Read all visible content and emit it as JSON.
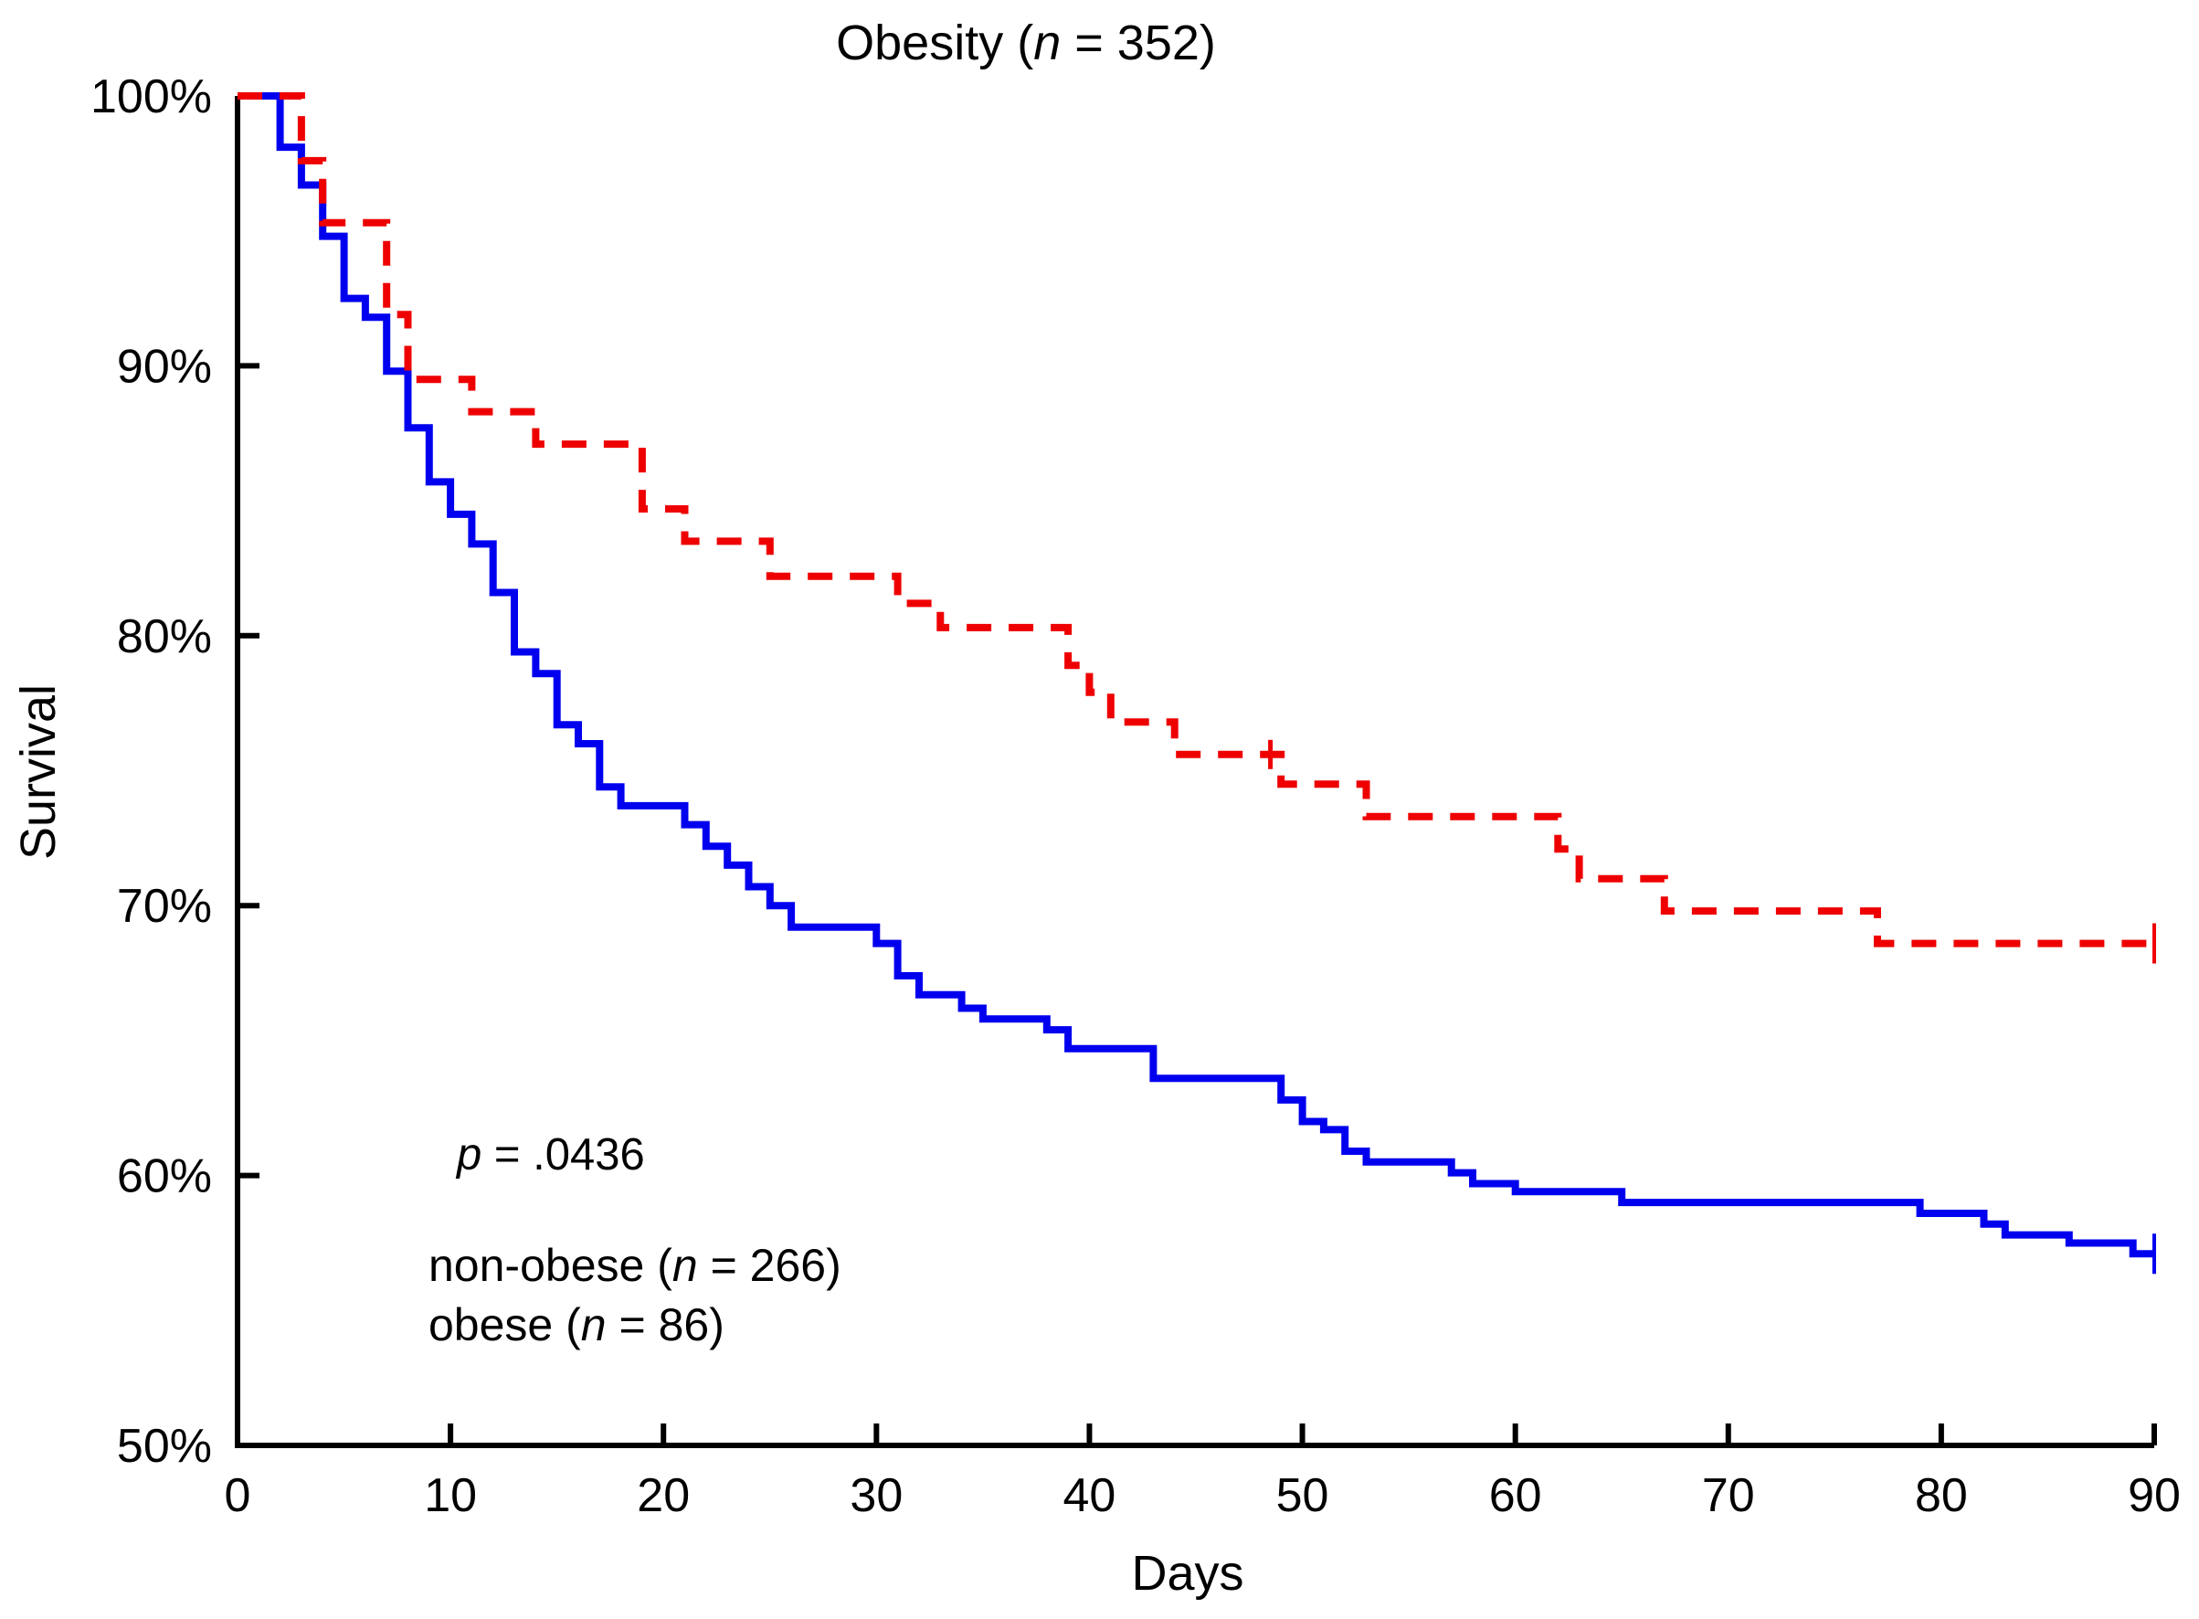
{
  "page": {
    "background": "#ffffff",
    "text_color": "#000000"
  },
  "chart_data": {
    "type": "line",
    "subtype": "kaplan-meier-step-survival",
    "title": {
      "pre": "Obesity (",
      "n": "n",
      "post": " = 352)"
    },
    "xlabel": "Days",
    "ylabel": "Survival",
    "xlim": [
      0,
      90
    ],
    "ylim": [
      50,
      100
    ],
    "grid": false,
    "axis_color": "#000000",
    "xticks": [
      {
        "value": 0,
        "label": "0"
      },
      {
        "value": 10,
        "label": "10"
      },
      {
        "value": 20,
        "label": "20"
      },
      {
        "value": 30,
        "label": "30"
      },
      {
        "value": 40,
        "label": "40"
      },
      {
        "value": 50,
        "label": "50"
      },
      {
        "value": 60,
        "label": "60"
      },
      {
        "value": 70,
        "label": "70"
      },
      {
        "value": 80,
        "label": "80"
      },
      {
        "value": 90,
        "label": "90"
      }
    ],
    "yticks": [
      {
        "value": 100,
        "label": "100%"
      },
      {
        "value": 90,
        "label": "90%"
      },
      {
        "value": 80,
        "label": "80%"
      },
      {
        "value": 70,
        "label": "70%"
      },
      {
        "value": 60,
        "label": "60%"
      },
      {
        "value": 50,
        "label": "50%"
      }
    ],
    "annotation": {
      "p_var": "p",
      "p_rest": " = .0436"
    },
    "legend_position": "inside-lower-left",
    "series": [
      {
        "name": "non-obese",
        "n": 266,
        "legend": {
          "pre": "non-obese (",
          "n": "n",
          "post": " = 266)"
        },
        "color": "#0000ee",
        "line_style": "solid",
        "points": [
          [
            0,
            100
          ],
          [
            2,
            98.1
          ],
          [
            3,
            96.7
          ],
          [
            4,
            94.8
          ],
          [
            5,
            92.5
          ],
          [
            6,
            91.8
          ],
          [
            7,
            89.8
          ],
          [
            8,
            87.7
          ],
          [
            9,
            85.7
          ],
          [
            10,
            84.5
          ],
          [
            11,
            83.4
          ],
          [
            12,
            81.6
          ],
          [
            13,
            79.4
          ],
          [
            14,
            78.6
          ],
          [
            15,
            76.7
          ],
          [
            16,
            76.0
          ],
          [
            17,
            74.4
          ],
          [
            18,
            73.7
          ],
          [
            21,
            73.0
          ],
          [
            22,
            72.2
          ],
          [
            23,
            71.5
          ],
          [
            24,
            70.7
          ],
          [
            25,
            70.0
          ],
          [
            26,
            69.2
          ],
          [
            30,
            68.6
          ],
          [
            31,
            67.4
          ],
          [
            32,
            66.7
          ],
          [
            34,
            66.2
          ],
          [
            35,
            65.8
          ],
          [
            38,
            65.4
          ],
          [
            39,
            64.7
          ],
          [
            43,
            63.6
          ],
          [
            49,
            62.8
          ],
          [
            50,
            62.0
          ],
          [
            51,
            61.7
          ],
          [
            52,
            60.9
          ],
          [
            53,
            60.5
          ],
          [
            57,
            60.1
          ],
          [
            58,
            59.7
          ],
          [
            60,
            59.4
          ],
          [
            65,
            59.0
          ],
          [
            79,
            58.6
          ],
          [
            82,
            58.2
          ],
          [
            83,
            57.8
          ],
          [
            86,
            57.5
          ],
          [
            89,
            57.1
          ]
        ],
        "end_day": 90,
        "end_censored": true,
        "censor_ticks": []
      },
      {
        "name": "obese",
        "n": 86,
        "legend": {
          "pre": "obese (",
          "n": "n",
          "post": " = 86)"
        },
        "color": "#ee0000",
        "line_style": "dashed",
        "points": [
          [
            0,
            100
          ],
          [
            3,
            97.6
          ],
          [
            4,
            95.3
          ],
          [
            7,
            91.9
          ],
          [
            8,
            89.5
          ],
          [
            11,
            88.3
          ],
          [
            14,
            87.1
          ],
          [
            19,
            84.7
          ],
          [
            21,
            83.5
          ],
          [
            25,
            82.2
          ],
          [
            31,
            81.2
          ],
          [
            33,
            80.3
          ],
          [
            39,
            78.9
          ],
          [
            40,
            77.9
          ],
          [
            41,
            76.8
          ],
          [
            44,
            75.6
          ],
          [
            49,
            74.5
          ],
          [
            53,
            73.3
          ],
          [
            62,
            72.1
          ],
          [
            63,
            71.0
          ],
          [
            67,
            69.8
          ],
          [
            77,
            68.6
          ]
        ],
        "end_day": 90,
        "end_censored": true,
        "censor_ticks": [
          [
            48.5,
            75.6
          ]
        ]
      }
    ]
  }
}
